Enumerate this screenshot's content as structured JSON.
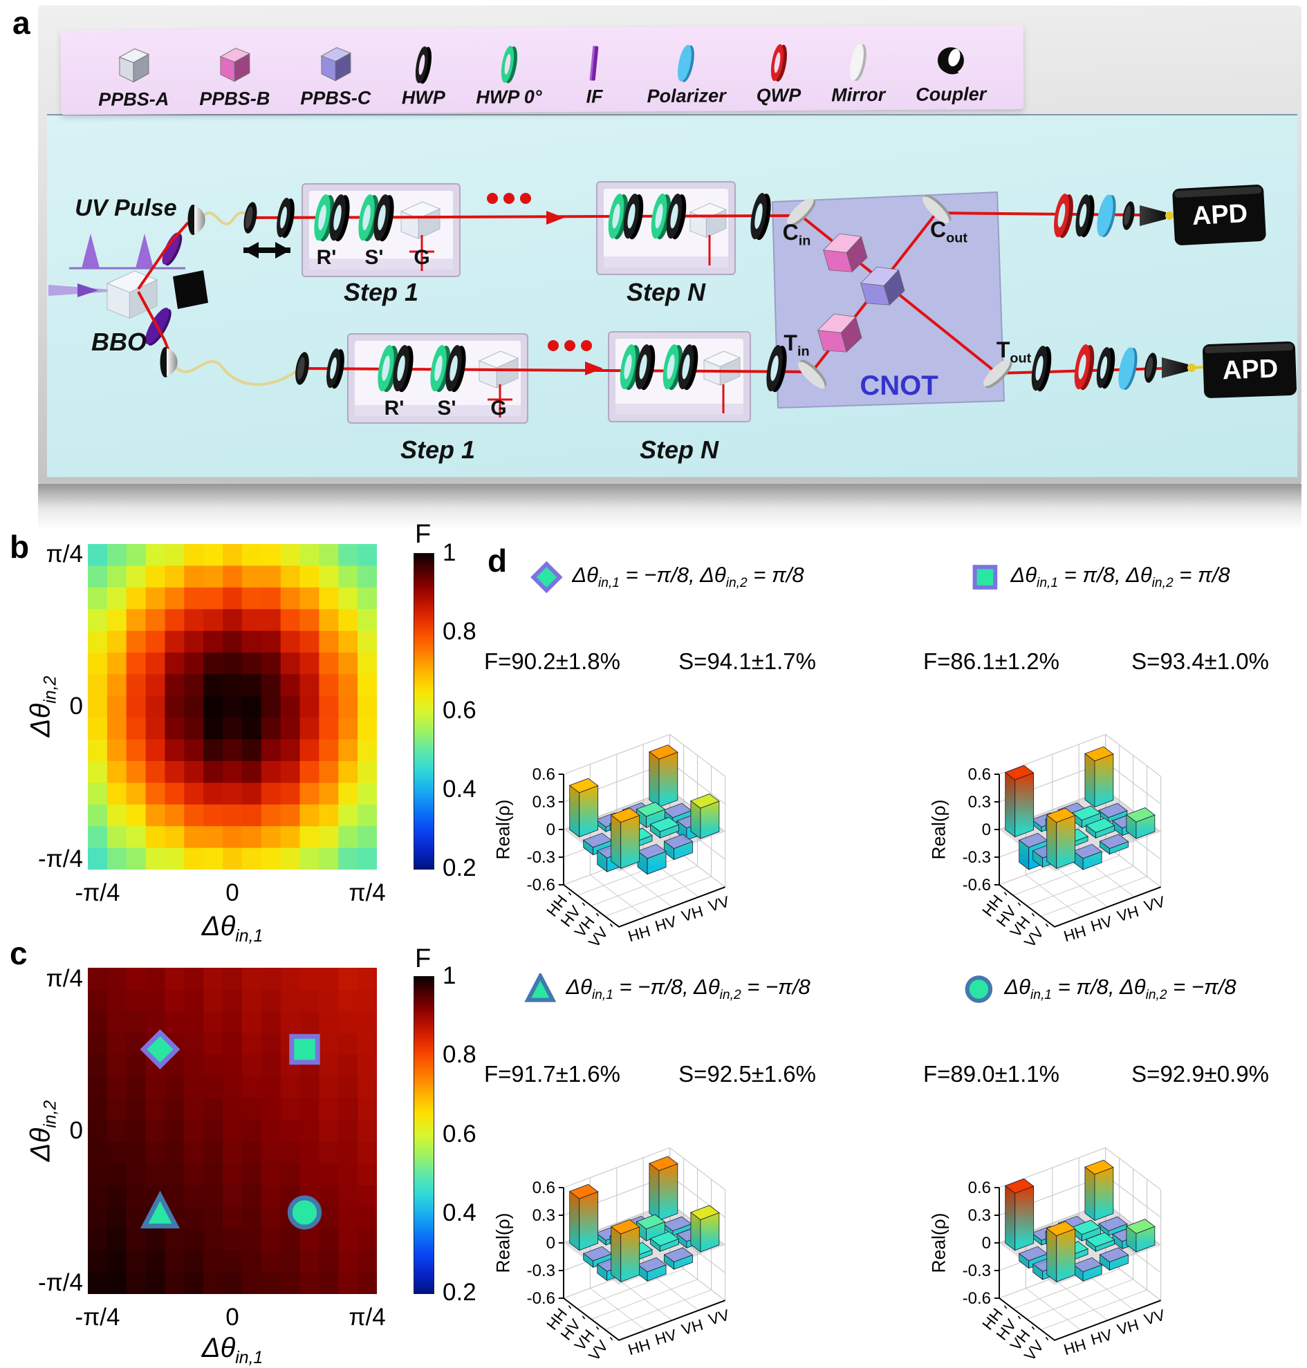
{
  "figure": {
    "panel_labels": {
      "a": "a",
      "b": "b",
      "c": "c",
      "d": "d"
    }
  },
  "panel_a": {
    "legend_items": [
      {
        "label": "PPBS-A",
        "icon": "cube-white"
      },
      {
        "label": "PPBS-B",
        "icon": "cube-pink"
      },
      {
        "label": "PPBS-C",
        "icon": "cube-blue"
      },
      {
        "label": "HWP",
        "icon": "ring-black"
      },
      {
        "label": "HWP 0°",
        "icon": "ring-green"
      },
      {
        "label": "IF",
        "icon": "rod-purple"
      },
      {
        "label": "Polarizer",
        "icon": "disc-cyan"
      },
      {
        "label": "QWP",
        "icon": "ring-red"
      },
      {
        "label": "Mirror",
        "icon": "disc-white"
      },
      {
        "label": "Coupler",
        "icon": "coupler-black"
      }
    ],
    "labels": {
      "uv_pulse": "UV Pulse",
      "bbo": "BBO",
      "step_r": "R'",
      "step_s": "S'",
      "step_g": "G",
      "step1": "Step 1",
      "stepN": "Step N",
      "cnot": "CNOT",
      "apd": "APD",
      "c_in": {
        "base": "C",
        "sub": "in"
      },
      "c_out": {
        "base": "C",
        "sub": "out"
      },
      "t_in": {
        "base": "T",
        "sub": "in"
      },
      "t_out": {
        "base": "T",
        "sub": "out"
      }
    }
  },
  "chart_data": [
    {
      "id": "b",
      "type": "heatmap",
      "grid_size": 15,
      "x_range": [
        "-π/4",
        "π/4"
      ],
      "y_range": [
        "-π/4",
        "π/4"
      ],
      "x_tick_labels": [
        "-π/4",
        "0",
        "π/4"
      ],
      "y_tick_labels": [
        "π/4",
        "0",
        "-π/4"
      ],
      "xlabel": {
        "base": "Δθ",
        "sub": "in,1"
      },
      "ylabel": {
        "base": "Δθ",
        "sub": "in,2"
      },
      "colorbar_label": "F",
      "colorbar_ticks": [
        "1",
        "0.8",
        "0.6",
        "0.4",
        "0.2"
      ],
      "colorbar_range": [
        0.2,
        1
      ],
      "value_model": {
        "kind": "radial",
        "c0": 1.0,
        "c1": -0.47,
        "c2": 0.1,
        "noise": 0.012,
        "f_center": 1.0,
        "f_edge_mid": 0.63,
        "f_corner": 0.47
      }
    },
    {
      "id": "c",
      "type": "heatmap",
      "grid_size": 15,
      "x_range": [
        "-π/4",
        "π/4"
      ],
      "y_range": [
        "-π/4",
        "π/4"
      ],
      "x_tick_labels": [
        "-π/4",
        "0",
        "π/4"
      ],
      "y_tick_labels": [
        "π/4",
        "0",
        "-π/4"
      ],
      "xlabel": {
        "base": "Δθ",
        "sub": "in,1"
      },
      "ylabel": {
        "base": "Δθ",
        "sub": "in,2"
      },
      "colorbar_label": "F",
      "colorbar_ticks": [
        "1",
        "0.8",
        "0.6",
        "0.4",
        "0.2"
      ],
      "colorbar_range": [
        0.2,
        1
      ],
      "value_model": {
        "kind": "linear2d",
        "f00": 1.0,
        "kx": 0.0675,
        "ky": 0.0675,
        "noise": 0.006,
        "f_bottom_left": 1.0,
        "f_top_right": 0.865
      },
      "markers": [
        {
          "shape": "diamond",
          "x": "-π/8",
          "y": "π/8",
          "u": -0.5,
          "v": 0.5,
          "stroke": "purple"
        },
        {
          "shape": "square",
          "x": "π/8",
          "y": "π/8",
          "u": 0.5,
          "v": 0.5,
          "stroke": "purple"
        },
        {
          "shape": "triangle",
          "x": "-π/8",
          "y": "-π/8",
          "u": -0.5,
          "v": -0.5,
          "stroke": "blue"
        },
        {
          "shape": "circle",
          "x": "π/8",
          "y": "-π/8",
          "u": 0.5,
          "v": -0.5,
          "stroke": "blue"
        }
      ]
    },
    {
      "id": "d1",
      "type": "bar3",
      "marker": "diamond",
      "marker_stroke": "purple",
      "condition_parts": [
        {
          "t": "Δθ"
        },
        {
          "s": "in,1"
        },
        {
          "t": " = −π/8, Δθ"
        },
        {
          "s": "in,2"
        },
        {
          "t": " = π/8"
        }
      ],
      "F_text": "F=90.2±1.8%",
      "S_text": "S=94.1±1.7%",
      "zlabel": "Real(ρ)",
      "z_ticks": [
        "0.6",
        "0.3",
        "0",
        "-0.3",
        "-0.6"
      ],
      "z_range": [
        -0.6,
        0.6
      ],
      "row_labels": [
        "HH",
        "HV",
        "VH",
        "VV"
      ],
      "col_labels": [
        "HH",
        "HV",
        "VH",
        "VV"
      ],
      "values": [
        [
          0.48,
          -0.05,
          -0.07,
          0.52
        ],
        [
          -0.08,
          0.07,
          0.12,
          -0.06
        ],
        [
          -0.15,
          0.06,
          0.07,
          -0.13
        ],
        [
          0.5,
          -0.17,
          -0.12,
          0.33
        ]
      ]
    },
    {
      "id": "d2",
      "type": "bar3",
      "marker": "square",
      "marker_stroke": "purple",
      "condition_parts": [
        {
          "t": "Δθ"
        },
        {
          "s": "in,1"
        },
        {
          "t": " = π/8, Δθ"
        },
        {
          "s": "in,2"
        },
        {
          "t": " = π/8"
        }
      ],
      "F_text": "F=86.1±1.2%",
      "S_text": "S=93.4±1.0%",
      "zlabel": "Real(ρ)",
      "z_ticks": [
        "0.6",
        "0.3",
        "0",
        "-0.3",
        "-0.6"
      ],
      "z_range": [
        -0.6,
        0.6
      ],
      "row_labels": [
        "HH",
        "HV",
        "VH",
        "VV"
      ],
      "col_labels": [
        "HH",
        "HV",
        "VH",
        "VV"
      ],
      "values": [
        [
          0.62,
          -0.05,
          -0.06,
          0.5
        ],
        [
          -0.24,
          0.12,
          0.08,
          -0.05
        ],
        [
          -0.1,
          0.05,
          0.06,
          -0.08
        ],
        [
          0.5,
          -0.12,
          -0.06,
          0.18
        ]
      ]
    },
    {
      "id": "d3",
      "type": "bar3",
      "marker": "triangle",
      "marker_stroke": "blue",
      "condition_parts": [
        {
          "t": "Δθ"
        },
        {
          "s": "in,1"
        },
        {
          "t": " = −π/8, Δθ"
        },
        {
          "s": "in,2"
        },
        {
          "t": " = −π/8"
        }
      ],
      "F_text": "F=91.7±1.6%",
      "S_text": "S=92.5±1.6%",
      "zlabel": "Real(ρ)",
      "z_ticks": [
        "0.6",
        "0.3",
        "0",
        "-0.3",
        "-0.6"
      ],
      "z_range": [
        -0.6,
        0.6
      ],
      "row_labels": [
        "HH",
        "HV",
        "VH",
        "VV"
      ],
      "col_labels": [
        "HH",
        "HV",
        "VH",
        "VV"
      ],
      "values": [
        [
          0.56,
          -0.05,
          -0.06,
          0.54
        ],
        [
          -0.07,
          0.08,
          0.13,
          -0.05
        ],
        [
          -0.1,
          0.05,
          0.06,
          -0.07
        ],
        [
          0.52,
          -0.1,
          -0.08,
          0.35
        ]
      ]
    },
    {
      "id": "d4",
      "type": "bar3",
      "marker": "circle",
      "marker_stroke": "blue",
      "condition_parts": [
        {
          "t": "Δθ"
        },
        {
          "s": "in,1"
        },
        {
          "t": " = π/8, Δθ"
        },
        {
          "s": "in,2"
        },
        {
          "t": " = −π/8"
        }
      ],
      "F_text": "F=89.0±1.1%",
      "S_text": "S=92.9±0.9%",
      "zlabel": "Real(ρ)",
      "z_ticks": [
        "0.6",
        "0.3",
        "0",
        "-0.3",
        "-0.6"
      ],
      "z_range": [
        -0.6,
        0.6
      ],
      "row_labels": [
        "HH",
        "HV",
        "VH",
        "VV"
      ],
      "col_labels": [
        "HH",
        "HV",
        "VH",
        "VV"
      ],
      "values": [
        [
          0.62,
          -0.05,
          -0.06,
          0.5
        ],
        [
          -0.08,
          0.13,
          0.07,
          -0.05
        ],
        [
          -0.09,
          0.06,
          0.05,
          -0.08
        ],
        [
          0.5,
          -0.1,
          -0.09,
          0.2
        ]
      ]
    }
  ],
  "colors": {
    "colormap_F": [
      [
        0.2,
        "#00137f"
      ],
      [
        0.25,
        "#0726c9"
      ],
      [
        0.3,
        "#0a46f5"
      ],
      [
        0.35,
        "#0b79f5"
      ],
      [
        0.4,
        "#18aef0"
      ],
      [
        0.45,
        "#2fd8d8"
      ],
      [
        0.5,
        "#5fe8a8"
      ],
      [
        0.55,
        "#9ef25f"
      ],
      [
        0.6,
        "#d8f52e"
      ],
      [
        0.65,
        "#fce303"
      ],
      [
        0.7,
        "#ffb400"
      ],
      [
        0.75,
        "#ff7d00"
      ],
      [
        0.8,
        "#f84b00"
      ],
      [
        0.84,
        "#e02800"
      ],
      [
        0.88,
        "#b81000"
      ],
      [
        0.92,
        "#860000"
      ],
      [
        0.96,
        "#4a0000"
      ],
      [
        1.0,
        "#0d0000"
      ]
    ],
    "colormap_z": [
      [
        0,
        "#000090"
      ],
      [
        0.12,
        "#0018ff"
      ],
      [
        0.25,
        "#0070ff"
      ],
      [
        0.38,
        "#00c8ff"
      ],
      [
        0.47,
        "#2adcdc"
      ],
      [
        0.54,
        "#3cecc4"
      ],
      [
        0.625,
        "#a0f060"
      ],
      [
        0.7,
        "#ffe400"
      ],
      [
        0.74,
        "#ffc000"
      ],
      [
        0.78,
        "#ff7a00"
      ],
      [
        0.82,
        "#ee2800"
      ],
      [
        0.9,
        "#c40000"
      ],
      [
        1,
        "#7f0000"
      ]
    ],
    "marker_fill": "#29e6a3",
    "marker_stroke_purple": "#7b74e0",
    "marker_stroke_blue": "#4279ae",
    "beam_red": "#e01010",
    "pump_purple": "#8a5ac8",
    "fiber_yellow": "#e3d490",
    "cnot_text": "#3434cc",
    "board_cyan": "#cdeef2",
    "legend_pink": "#f3dcf7",
    "cnot_board": "#b9bce4"
  }
}
